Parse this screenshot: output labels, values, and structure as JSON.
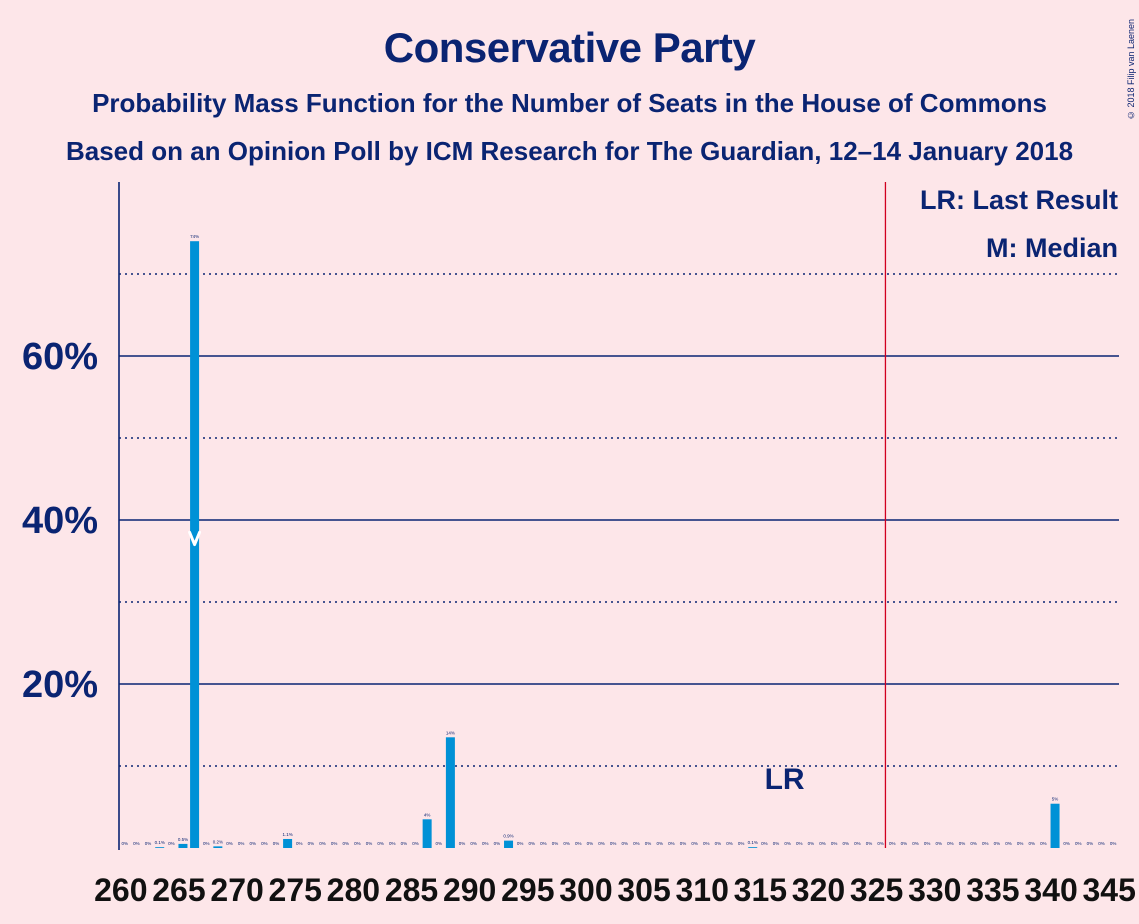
{
  "header": {
    "title": "Conservative Party",
    "subtitle": "Probability Mass Function for the Number of Seats in the House of Commons",
    "subtitle2": "Based on an Opinion Poll by ICM Research for The Guardian, 12–14 January 2018",
    "copyright": "© 2018 Filip van Laenen"
  },
  "legend": {
    "last_result": "LR: Last Result",
    "median": "M: Median",
    "lr_marker": "LR"
  },
  "colors": {
    "background": "#fde6e9",
    "bar": "#0091d6",
    "text": "#0a2472",
    "majority_line": "#d00020"
  },
  "chart_data": {
    "type": "bar",
    "title": "Conservative Party",
    "x_min": 260,
    "x_max": 345,
    "x_tick_step": 5,
    "y_ticks_major": [
      0.2,
      0.4,
      0.6
    ],
    "y_tick_labels": [
      "20%",
      "40%",
      "60%"
    ],
    "y_ticks_minor": [
      0.1,
      0.3,
      0.5,
      0.7
    ],
    "ylim": [
      0,
      0.74
    ],
    "majority_seat": 326,
    "last_result_seat": 317,
    "median_seat": 266,
    "points": [
      {
        "x": 260,
        "y": 0,
        "label": "0%"
      },
      {
        "x": 261,
        "y": 0,
        "label": "0%"
      },
      {
        "x": 262,
        "y": 0,
        "label": "0%"
      },
      {
        "x": 263,
        "y": 0.001,
        "label": "0.1%"
      },
      {
        "x": 264,
        "y": 0,
        "label": "0%"
      },
      {
        "x": 265,
        "y": 0.005,
        "label": "0.5%"
      },
      {
        "x": 266,
        "y": 0.74,
        "label": "74%"
      },
      {
        "x": 267,
        "y": 0,
        "label": "0%"
      },
      {
        "x": 268,
        "y": 0.002,
        "label": "0.2%"
      },
      {
        "x": 269,
        "y": 0,
        "label": "0%"
      },
      {
        "x": 270,
        "y": 0,
        "label": "0%"
      },
      {
        "x": 271,
        "y": 0,
        "label": "0%"
      },
      {
        "x": 272,
        "y": 0,
        "label": "0%"
      },
      {
        "x": 273,
        "y": 0,
        "label": "0%"
      },
      {
        "x": 274,
        "y": 0.011,
        "label": "1.1%"
      },
      {
        "x": 275,
        "y": 0,
        "label": "0%"
      },
      {
        "x": 276,
        "y": 0,
        "label": "0%"
      },
      {
        "x": 277,
        "y": 0,
        "label": "0%"
      },
      {
        "x": 278,
        "y": 0,
        "label": "0%"
      },
      {
        "x": 279,
        "y": 0,
        "label": "0%"
      },
      {
        "x": 280,
        "y": 0,
        "label": "0%"
      },
      {
        "x": 281,
        "y": 0,
        "label": "0%"
      },
      {
        "x": 282,
        "y": 0,
        "label": "0%"
      },
      {
        "x": 283,
        "y": 0,
        "label": "0%"
      },
      {
        "x": 284,
        "y": 0,
        "label": "0%"
      },
      {
        "x": 285,
        "y": 0,
        "label": "0%"
      },
      {
        "x": 286,
        "y": 0.035,
        "label": "4%"
      },
      {
        "x": 287,
        "y": 0,
        "label": "0%"
      },
      {
        "x": 288,
        "y": 0.135,
        "label": "14%"
      },
      {
        "x": 289,
        "y": 0,
        "label": "0%"
      },
      {
        "x": 290,
        "y": 0,
        "label": "0%"
      },
      {
        "x": 291,
        "y": 0,
        "label": "0%"
      },
      {
        "x": 292,
        "y": 0,
        "label": "0%"
      },
      {
        "x": 293,
        "y": 0.009,
        "label": "0.9%"
      },
      {
        "x": 294,
        "y": 0,
        "label": "0%"
      },
      {
        "x": 295,
        "y": 0,
        "label": "0%"
      },
      {
        "x": 296,
        "y": 0,
        "label": "0%"
      },
      {
        "x": 297,
        "y": 0,
        "label": "0%"
      },
      {
        "x": 298,
        "y": 0,
        "label": "0%"
      },
      {
        "x": 299,
        "y": 0,
        "label": "0%"
      },
      {
        "x": 300,
        "y": 0,
        "label": "0%"
      },
      {
        "x": 301,
        "y": 0,
        "label": "0%"
      },
      {
        "x": 302,
        "y": 0,
        "label": "0%"
      },
      {
        "x": 303,
        "y": 0,
        "label": "0%"
      },
      {
        "x": 304,
        "y": 0,
        "label": "0%"
      },
      {
        "x": 305,
        "y": 0,
        "label": "0%"
      },
      {
        "x": 306,
        "y": 0,
        "label": "0%"
      },
      {
        "x": 307,
        "y": 0,
        "label": "0%"
      },
      {
        "x": 308,
        "y": 0,
        "label": "0%"
      },
      {
        "x": 309,
        "y": 0,
        "label": "0%"
      },
      {
        "x": 310,
        "y": 0,
        "label": "0%"
      },
      {
        "x": 311,
        "y": 0,
        "label": "0%"
      },
      {
        "x": 312,
        "y": 0,
        "label": "0%"
      },
      {
        "x": 313,
        "y": 0,
        "label": "0%"
      },
      {
        "x": 314,
        "y": 0.001,
        "label": "0.1%"
      },
      {
        "x": 315,
        "y": 0,
        "label": "0%"
      },
      {
        "x": 316,
        "y": 0,
        "label": "0%"
      },
      {
        "x": 317,
        "y": 0,
        "label": "0%"
      },
      {
        "x": 318,
        "y": 0,
        "label": "0%"
      },
      {
        "x": 319,
        "y": 0,
        "label": "0%"
      },
      {
        "x": 320,
        "y": 0,
        "label": "0%"
      },
      {
        "x": 321,
        "y": 0,
        "label": "0%"
      },
      {
        "x": 322,
        "y": 0,
        "label": "0%"
      },
      {
        "x": 323,
        "y": 0,
        "label": "0%"
      },
      {
        "x": 324,
        "y": 0,
        "label": "0%"
      },
      {
        "x": 325,
        "y": 0,
        "label": "0%"
      },
      {
        "x": 326,
        "y": 0,
        "label": "0%"
      },
      {
        "x": 327,
        "y": 0,
        "label": "0%"
      },
      {
        "x": 328,
        "y": 0,
        "label": "0%"
      },
      {
        "x": 329,
        "y": 0,
        "label": "0%"
      },
      {
        "x": 330,
        "y": 0,
        "label": "0%"
      },
      {
        "x": 331,
        "y": 0,
        "label": "0%"
      },
      {
        "x": 332,
        "y": 0,
        "label": "0%"
      },
      {
        "x": 333,
        "y": 0,
        "label": "0%"
      },
      {
        "x": 334,
        "y": 0,
        "label": "0%"
      },
      {
        "x": 335,
        "y": 0,
        "label": "0%"
      },
      {
        "x": 336,
        "y": 0,
        "label": "0%"
      },
      {
        "x": 337,
        "y": 0,
        "label": "0%"
      },
      {
        "x": 338,
        "y": 0,
        "label": "0%"
      },
      {
        "x": 339,
        "y": 0,
        "label": "0%"
      },
      {
        "x": 340,
        "y": 0.054,
        "label": "5%"
      },
      {
        "x": 341,
        "y": 0,
        "label": "0%"
      },
      {
        "x": 342,
        "y": 0,
        "label": "0%"
      },
      {
        "x": 343,
        "y": 0,
        "label": "0%"
      },
      {
        "x": 344,
        "y": 0,
        "label": "0%"
      },
      {
        "x": 345,
        "y": 0,
        "label": "0%"
      }
    ]
  }
}
